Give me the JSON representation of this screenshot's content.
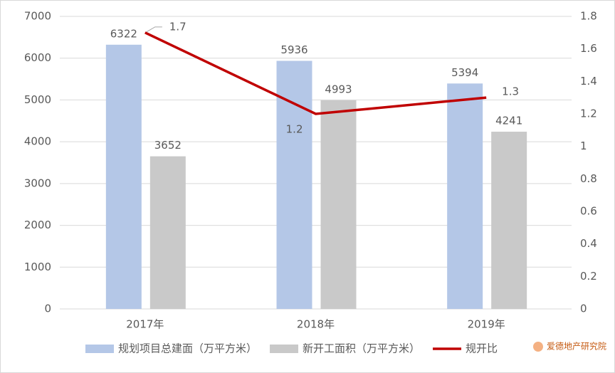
{
  "chart_data": {
    "type": "bar-line",
    "categories": [
      "2017年",
      "2018年",
      "2019年"
    ],
    "series": [
      {
        "name": "规划项目总建面（万平方米）",
        "color": "#b4c7e7",
        "type": "bar",
        "values": [
          6322,
          5936,
          5394
        ]
      },
      {
        "name": "新开工面积（万平方米）",
        "color": "#c9c9c9",
        "type": "bar",
        "values": [
          3652,
          4993,
          4241
        ]
      },
      {
        "name": "规开比",
        "color": "#c00000",
        "type": "line",
        "axis": "y2",
        "values": [
          1.7,
          1.2,
          1.3
        ]
      }
    ],
    "ylim": [
      0,
      7000
    ],
    "yticks": [
      0,
      1000,
      2000,
      3000,
      4000,
      5000,
      6000,
      7000
    ],
    "y2lim": [
      0,
      1.8
    ],
    "y2ticks": [
      0,
      0.2,
      0.4,
      0.6,
      0.8,
      1,
      1.2,
      1.4,
      1.6,
      1.8
    ],
    "grid": true,
    "legend": "bottom",
    "watermark": "爱德地产研究院"
  }
}
